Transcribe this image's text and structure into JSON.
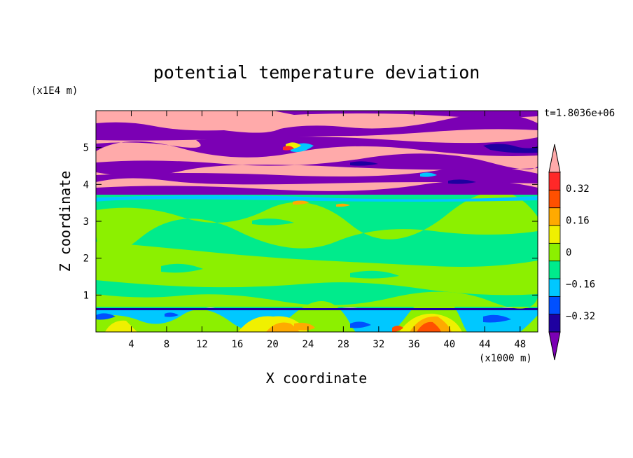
{
  "chart_data": {
    "type": "contour",
    "title": "potential temperature deviation",
    "xlabel": "X coordinate",
    "ylabel": "Z coordinate",
    "x_unit": "(x1000 m)",
    "y_unit": "(x1E4 m)",
    "time_label": "t=1.8036e+06",
    "xlim": [
      0,
      50
    ],
    "ylim": [
      0,
      6
    ],
    "xticks": [
      4,
      8,
      12,
      16,
      20,
      24,
      28,
      32,
      36,
      40,
      44,
      48
    ],
    "xtick_labels": [
      "4",
      "8",
      "12",
      "16",
      "20",
      "24",
      "28",
      "32",
      "36",
      "40",
      "44",
      "48"
    ],
    "yticks": [
      1,
      2,
      3,
      4,
      5
    ],
    "ytick_labels": [
      "1",
      "2",
      "3",
      "4",
      "5"
    ],
    "colorbar": {
      "levels": [
        -0.4,
        -0.32,
        -0.24,
        -0.16,
        -0.08,
        0,
        0.08,
        0.16,
        0.24,
        0.32,
        0.4
      ],
      "colors": [
        "#7b00b4",
        "#1e00a0",
        "#0050ff",
        "#00c8ff",
        "#00eb8c",
        "#8cf000",
        "#f0f000",
        "#ffaa00",
        "#ff5000",
        "#ff2828",
        "#ffaaaa"
      ],
      "tick_values": [
        0.32,
        0.16,
        0,
        -0.16,
        -0.32
      ],
      "tick_labels": [
        "0.32",
        "0.16",
        "0",
        "−0.16",
        "−0.32"
      ]
    },
    "bands": [
      {
        "z_range": [
          5.55,
          6.0
        ],
        "value": "above 0.4 / below -0.4 alternating"
      },
      {
        "z_range": [
          3.75,
          5.55
        ],
        "value": "alternating >0.4 and <-0.4 layers"
      },
      {
        "z_range": [
          0.6,
          3.75
        ],
        "value": "-0.08 to 0.08"
      },
      {
        "z_range": [
          0.0,
          0.6
        ],
        "value": "-0.24 to 0.4 mixed"
      }
    ]
  }
}
